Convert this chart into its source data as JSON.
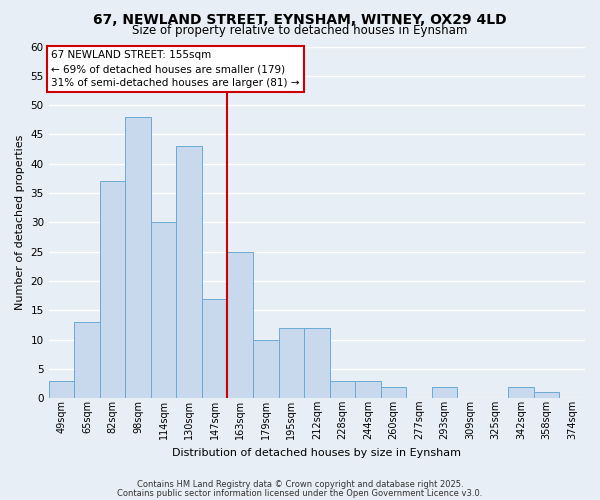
{
  "title": "67, NEWLAND STREET, EYNSHAM, WITNEY, OX29 4LD",
  "subtitle": "Size of property relative to detached houses in Eynsham",
  "xlabel": "Distribution of detached houses by size in Eynsham",
  "ylabel": "Number of detached properties",
  "bar_labels": [
    "49sqm",
    "65sqm",
    "82sqm",
    "98sqm",
    "114sqm",
    "130sqm",
    "147sqm",
    "163sqm",
    "179sqm",
    "195sqm",
    "212sqm",
    "228sqm",
    "244sqm",
    "260sqm",
    "277sqm",
    "293sqm",
    "309sqm",
    "325sqm",
    "342sqm",
    "358sqm",
    "374sqm"
  ],
  "bar_values": [
    3,
    13,
    37,
    48,
    30,
    43,
    17,
    25,
    10,
    12,
    12,
    3,
    3,
    2,
    0,
    2,
    0,
    0,
    2,
    1,
    0
  ],
  "bar_color": "#c8d8ed",
  "bar_edge_color": "#6aaad4",
  "vline_color": "#cc0000",
  "annotation_title": "67 NEWLAND STREET: 155sqm",
  "annotation_line1": "← 69% of detached houses are smaller (179)",
  "annotation_line2": "31% of semi-detached houses are larger (81) →",
  "annotation_box_facecolor": "#ffffff",
  "annotation_box_edgecolor": "#cc0000",
  "ylim": [
    0,
    60
  ],
  "yticks": [
    0,
    5,
    10,
    15,
    20,
    25,
    30,
    35,
    40,
    45,
    50,
    55,
    60
  ],
  "footer1": "Contains HM Land Registry data © Crown copyright and database right 2025.",
  "footer2": "Contains public sector information licensed under the Open Government Licence v3.0.",
  "bg_color": "#e8eef5",
  "grid_color": "#ffffff"
}
